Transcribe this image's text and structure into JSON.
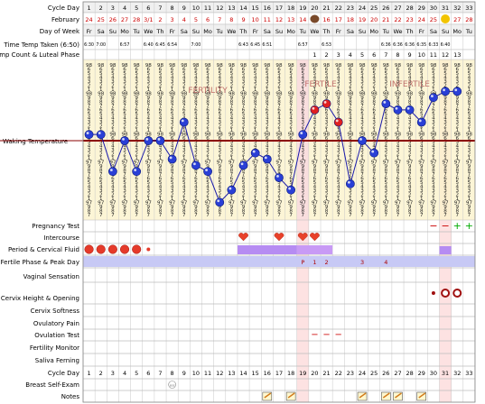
{
  "chart_data": {
    "type": "fertility-chart",
    "cycle_days": [
      "1",
      "2",
      "3",
      "4",
      "5",
      "6",
      "7",
      "8",
      "9",
      "10",
      "11",
      "12",
      "13",
      "14",
      "15",
      "16",
      "17",
      "18",
      "19",
      "20",
      "21",
      "22",
      "23",
      "24",
      "25",
      "26",
      "27",
      "28",
      "29",
      "30",
      "31",
      "32",
      "33"
    ],
    "dates": [
      "24",
      "25",
      "26",
      "27",
      "28",
      "3/1",
      "2",
      "3",
      "4",
      "5",
      "6",
      "7",
      "8",
      "9",
      "10",
      "11",
      "12",
      "13",
      "14",
      "15",
      "16",
      "17",
      "18",
      "19",
      "20",
      "21",
      "22",
      "23",
      "24",
      "25",
      "26",
      "27",
      "28"
    ],
    "month": "February",
    "weekdays": [
      "Fr",
      "Sa",
      "Su",
      "Mo",
      "Tu",
      "We",
      "Th",
      "Fr",
      "Sa",
      "Su",
      "Mo",
      "Tu",
      "We",
      "Th",
      "Fr",
      "Sa",
      "Su",
      "Mo",
      "Tu",
      "We",
      "Th",
      "Fr",
      "Sa",
      "Su",
      "Mo",
      "Tu",
      "We",
      "Th",
      "Fr",
      "Sa",
      "Su",
      "Mo",
      "Tu"
    ],
    "times": [
      "6:30",
      "7:00",
      "",
      "6:57",
      "",
      "6:40",
      "6:45",
      "6:54",
      "",
      "7:00",
      "",
      "",
      "",
      "6:43",
      "6:45",
      "6:51",
      "",
      "",
      "6:57",
      "",
      "6:53",
      "",
      "",
      "",
      "",
      "6:36",
      "6:36",
      "6:36",
      "6:35",
      "6:33",
      "6:40",
      "",
      ""
    ],
    "temp_count": [
      "",
      "",
      "",
      "",
      "",
      "",
      "",
      "",
      "",
      "",
      "",
      "",
      "",
      "",
      "",
      "",
      "",
      "",
      "",
      "1",
      "2",
      "3",
      "4",
      "5",
      "6",
      "7",
      "8",
      "9",
      "10",
      "11",
      "12",
      "13",
      ""
    ],
    "temperatures_F": [
      97.9,
      97.9,
      97.3,
      97.8,
      97.3,
      97.8,
      97.8,
      97.5,
      98.1,
      97.4,
      97.3,
      96.8,
      97.0,
      97.4,
      97.6,
      97.5,
      97.2,
      97.0,
      97.9,
      98.3,
      98.4,
      98.1,
      97.1,
      97.8,
      97.6,
      98.4,
      98.3,
      98.3,
      98.1,
      98.5,
      98.6,
      98.6,
      null
    ],
    "y_range": [
      96.6,
      99.0
    ],
    "cover_line_F": 97.8,
    "ticks_top": [
      "98",
      "6",
      "5",
      "4",
      "3",
      "2",
      "1",
      "98",
      "9",
      "8",
      "7",
      "6",
      "5",
      "4",
      "3",
      "2",
      "1",
      "98"
    ],
    "ticks_bottom": [
      "6",
      "5",
      "4",
      "3",
      "2",
      "1",
      "97",
      "9",
      "8",
      "7",
      "6",
      "5",
      "4",
      "3",
      "2",
      "1",
      "97",
      "9",
      "8",
      "7"
    ],
    "phase_labels": [
      "FERTILITY",
      "FERTILE",
      "INFERTILE"
    ],
    "intercourse_days": [
      14,
      17,
      19,
      20
    ],
    "period_days": [
      1,
      2,
      3,
      4,
      5
    ],
    "spotting_days": [
      6
    ],
    "fertile_markers": {
      "19": "P",
      "20": "1",
      "21": "2",
      "24": "3",
      "26": "4"
    },
    "cervix_days": [
      30,
      31,
      32
    ],
    "ovulation_test_days": [
      20,
      21,
      22
    ],
    "preg_test": {
      "30": "−",
      "31": "−",
      "32": "+",
      "33": "+"
    },
    "notes_days": [
      16,
      18,
      24,
      26,
      27,
      29
    ],
    "special_date_days": [
      20,
      31
    ],
    "bse_day": 8,
    "bse_label": "BSE",
    "accent": "#ffe8e8",
    "highlight_col": "#fde2e2"
  },
  "rows": {
    "cycle_day": "Cycle Day",
    "month": "February",
    "weekday": "Day of Week",
    "time": "Time Temp Taken (6:50)",
    "count": "Temp Count & Luteal Phase",
    "waking": "Waking Temperature",
    "preg": "Pregnancy Test",
    "intercourse": "Intercourse",
    "period": "Period & Cervical Fluid",
    "fertile": "Fertile Phase & Peak Day",
    "vaginal": "Vaginal Sensation",
    "cervix_height": "Cervix Height & Opening",
    "cervix_soft": "Cervix Softness",
    "ovul_pain": "Ovulatory Pain",
    "ovul_test": "Ovulation Test",
    "monitor": "Fertility Monitor",
    "saliva": "Saliva Ferning",
    "cycle_day2": "Cycle Day",
    "bse": "Breast Self-Exam",
    "notes": "Notes"
  }
}
